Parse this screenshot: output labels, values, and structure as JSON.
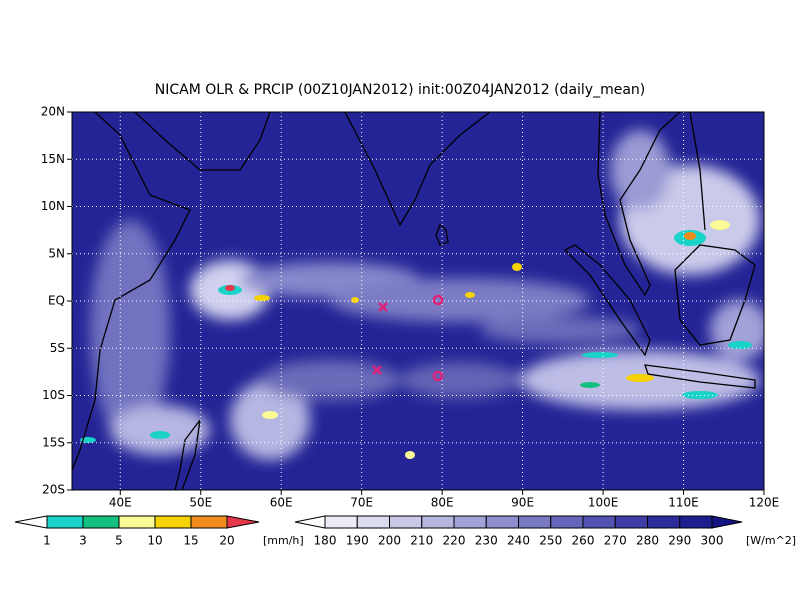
{
  "title": "NICAM OLR & PRCIP (00Z10JAN2012) init:00Z04JAN2012 (daily_mean)",
  "map": {
    "lon_range": [
      34,
      120
    ],
    "lat_range": [
      -20,
      20
    ],
    "lon_ticks": [
      {
        "value": 40,
        "label": "40E"
      },
      {
        "value": 50,
        "label": "50E"
      },
      {
        "value": 60,
        "label": "60E"
      },
      {
        "value": 70,
        "label": "70E"
      },
      {
        "value": 80,
        "label": "80E"
      },
      {
        "value": 90,
        "label": "90E"
      },
      {
        "value": 100,
        "label": "100E"
      },
      {
        "value": 110,
        "label": "110E"
      },
      {
        "value": 120,
        "label": "120E"
      }
    ],
    "lat_ticks": [
      {
        "value": 20,
        "label": "20N"
      },
      {
        "value": 15,
        "label": "15N"
      },
      {
        "value": 10,
        "label": "10N"
      },
      {
        "value": 5,
        "label": "5N"
      },
      {
        "value": 0,
        "label": "EQ"
      },
      {
        "value": -5,
        "label": "5S"
      },
      {
        "value": -10,
        "label": "10S"
      },
      {
        "value": -15,
        "label": "15S"
      },
      {
        "value": -20,
        "label": "20S"
      }
    ]
  },
  "precip_colorbar": {
    "levels": [
      1,
      3,
      5,
      10,
      15,
      20
    ],
    "unit": "[mm/h]",
    "colors": [
      "#ffffff",
      "#19d2c8",
      "#14c080",
      "#fafa96",
      "#f5d200",
      "#f08c1e",
      "#e6374b"
    ]
  },
  "olr_colorbar": {
    "levels": [
      180,
      190,
      200,
      210,
      220,
      230,
      240,
      250,
      260,
      270,
      280,
      290,
      300
    ],
    "unit": "[W/m^2]",
    "colors": [
      "#ffffff",
      "#ececf6",
      "#dcdcef",
      "#c9c9e7",
      "#b6b6df",
      "#a2a2d6",
      "#8e8ece",
      "#7a7ac4",
      "#6666ba",
      "#5252b0",
      "#3e3ea6",
      "#2c2c9c",
      "#1e1e90",
      "#141482"
    ]
  }
}
